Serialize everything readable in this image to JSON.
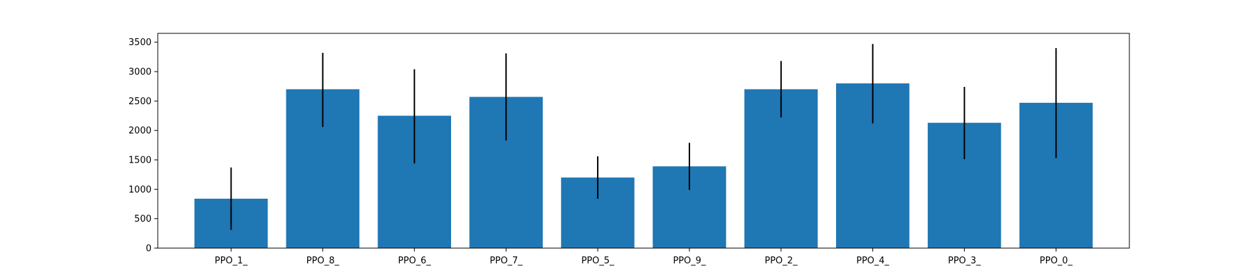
{
  "chart_data": {
    "type": "bar",
    "title": "",
    "xlabel": "",
    "ylabel": "",
    "categories": [
      "PPO_1_",
      "PPO_8_",
      "PPO_6_",
      "PPO_7_",
      "PPO_5_",
      "PPO_9_",
      "PPO_2_",
      "PPO_4_",
      "PPO_3_",
      "PPO_0_"
    ],
    "values": [
      840,
      2700,
      2250,
      2570,
      1200,
      1390,
      2700,
      2800,
      2130,
      2470
    ],
    "error_low": [
      310,
      2060,
      1440,
      1830,
      840,
      990,
      2220,
      2120,
      1510,
      1530
    ],
    "error_high": [
      1370,
      3320,
      3040,
      3310,
      1560,
      1790,
      3180,
      3470,
      2740,
      3400
    ],
    "ylim": [
      0,
      3650
    ],
    "yticks": [
      0,
      500,
      1000,
      1500,
      2000,
      2500,
      3000,
      3500
    ],
    "grid": false,
    "legend": "none",
    "colors": {
      "bar": "#1f77b4",
      "errorbar": "#000000",
      "axes": "#000000"
    }
  }
}
